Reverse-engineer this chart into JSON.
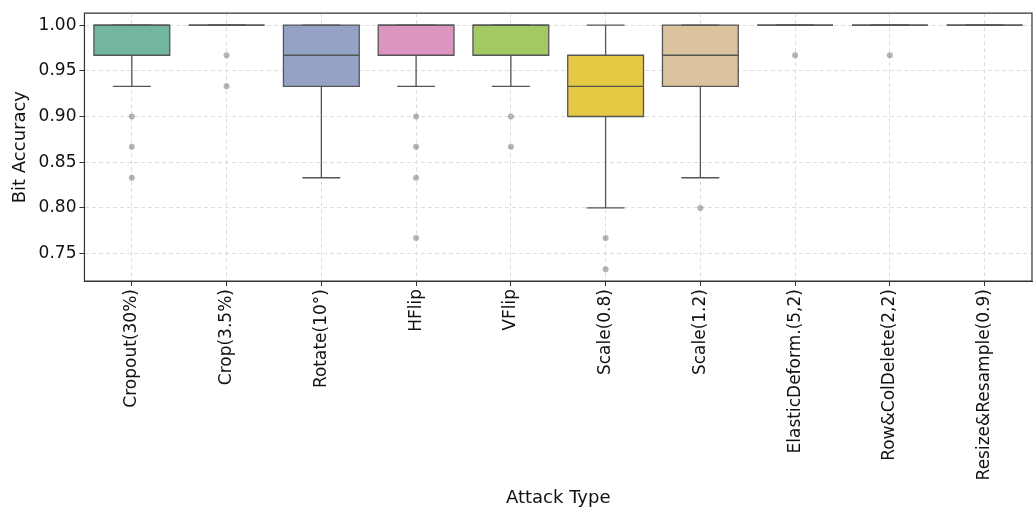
{
  "chart_data": {
    "type": "box",
    "xlabel": "Attack Type",
    "ylabel": "Bit Accuracy",
    "categories": [
      "Cropout(30%)",
      "Crop(3.5%)",
      "Rotate(10°)",
      "HFlip",
      "VFlip",
      "Scale(0.8)",
      "Scale(1.2)",
      "ElasticDeform.(5,2)",
      "Row&ColDelete(2,2)",
      "Resize&Resample(0.9)"
    ],
    "colors": [
      "#73b6a0",
      "#555555",
      "#94a3c5",
      "#dc95c0",
      "#a2c964",
      "#e5c944",
      "#dbc39d",
      "#555555",
      "#555555",
      "#555555"
    ],
    "boxes": [
      {
        "low": 0.933,
        "q1": 0.967,
        "median": 1.0,
        "q3": 1.0,
        "high": 1.0,
        "outliers": [
          0.9,
          0.867,
          0.833
        ]
      },
      {
        "low": 1.0,
        "q1": 1.0,
        "median": 1.0,
        "q3": 1.0,
        "high": 1.0,
        "outliers": [
          0.967,
          0.933
        ]
      },
      {
        "low": 0.833,
        "q1": 0.933,
        "median": 0.967,
        "q3": 1.0,
        "high": 1.0
      },
      {
        "low": 0.933,
        "q1": 0.967,
        "median": 1.0,
        "q3": 1.0,
        "high": 1.0,
        "outliers": [
          0.9,
          0.867,
          0.833,
          0.767
        ]
      },
      {
        "low": 0.933,
        "q1": 0.967,
        "median": 1.0,
        "q3": 1.0,
        "high": 1.0,
        "outliers": [
          0.9,
          0.867
        ]
      },
      {
        "low": 0.8,
        "q1": 0.9,
        "median": 0.933,
        "q3": 0.967,
        "high": 1.0,
        "outliers": [
          0.767,
          0.733
        ]
      },
      {
        "low": 0.833,
        "q1": 0.933,
        "median": 0.967,
        "q3": 1.0,
        "high": 1.0,
        "outliers": [
          0.8
        ]
      },
      {
        "low": 1.0,
        "q1": 1.0,
        "median": 1.0,
        "q3": 1.0,
        "high": 1.0,
        "outliers": [
          0.967
        ]
      },
      {
        "low": 1.0,
        "q1": 1.0,
        "median": 1.0,
        "q3": 1.0,
        "high": 1.0,
        "outliers": [
          0.967
        ]
      },
      {
        "low": 1.0,
        "q1": 1.0,
        "median": 1.0,
        "q3": 1.0,
        "high": 1.0
      }
    ],
    "ylim": [
      0.72,
      1.013
    ],
    "yticks": [
      {
        "value": 0.75,
        "label": "0.75"
      },
      {
        "value": 0.8,
        "label": "0.80"
      },
      {
        "value": 0.85,
        "label": "0.85"
      },
      {
        "value": 0.9,
        "label": "0.90"
      },
      {
        "value": 0.95,
        "label": "0.95"
      },
      {
        "value": 1.0,
        "label": "1.00"
      }
    ],
    "grid": true,
    "marker": "circle"
  }
}
